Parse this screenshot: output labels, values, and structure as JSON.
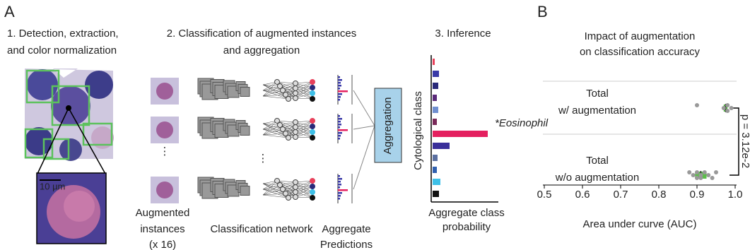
{
  "panel_labels": [
    "A",
    "B"
  ],
  "step1": {
    "title_lines": [
      "1. Detection, extraction,",
      "and color normalization"
    ],
    "scale_bar": "10 µm"
  },
  "step2": {
    "title_lines": [
      "2. Classification of augmented instances",
      "and aggregation"
    ],
    "aggregation": "Aggregation",
    "instances_label": [
      "Augmented",
      "instances",
      "(x 16)"
    ],
    "network_label": "Classification network",
    "predictions_label": [
      "Aggregate",
      "Predictions"
    ]
  },
  "chart_data": [
    {
      "type": "bar",
      "title": "3. Inference",
      "y_label": "Cytological class",
      "x_label_lines": [
        "Aggregate class",
        "probability"
      ],
      "annotation": "*Eosinophil",
      "categories": [
        null,
        null,
        null,
        null,
        null,
        null,
        null,
        null,
        null,
        null,
        null,
        null
      ],
      "values": [
        0.03,
        0.09,
        0.08,
        0.06,
        0.08,
        0.06,
        0.78,
        0.24,
        0.07,
        0.06,
        0.11,
        0.09
      ],
      "colors": [
        "#e8405a",
        "#3a3aa8",
        "#2a2a7a",
        "#5a2a7a",
        "#6f8fd0",
        "#7a2a5a",
        "#e4205f",
        "#3a2f9a",
        "#5a6fa0",
        "#3060b0",
        "#3ec0e8",
        "#111111"
      ],
      "xlim": [
        0,
        1
      ]
    },
    {
      "type": "strip",
      "title_lines": [
        "Impact of augmentation",
        "on classification accuracy"
      ],
      "categories": [
        [
          "Total",
          "w/ augmentation"
        ],
        [
          "Total",
          "w/o augmentation"
        ]
      ],
      "points": [
        [
          0.9,
          0.97,
          0.98,
          0.98,
          0.99
        ],
        [
          0.88,
          0.89,
          0.9,
          0.9,
          0.91,
          0.91,
          0.92,
          0.93,
          0.94,
          0.95
        ]
      ],
      "boxes": [
        {
          "q1": 0.97,
          "median": 0.975,
          "q3": 0.98
        },
        {
          "q1": 0.895,
          "median": 0.91,
          "q3": 0.925
        }
      ],
      "point_color": "#999999",
      "box_color": "#5cbf4a",
      "xlim": [
        0.5,
        1.0
      ],
      "xticks": [
        0.5,
        0.6,
        0.7,
        0.8,
        0.9,
        {
          "value": 1.0,
          "label": "1.0"
        }
      ],
      "x_label": "Area under curve (AUC)",
      "annotation": "p = 3.12e-2"
    }
  ]
}
